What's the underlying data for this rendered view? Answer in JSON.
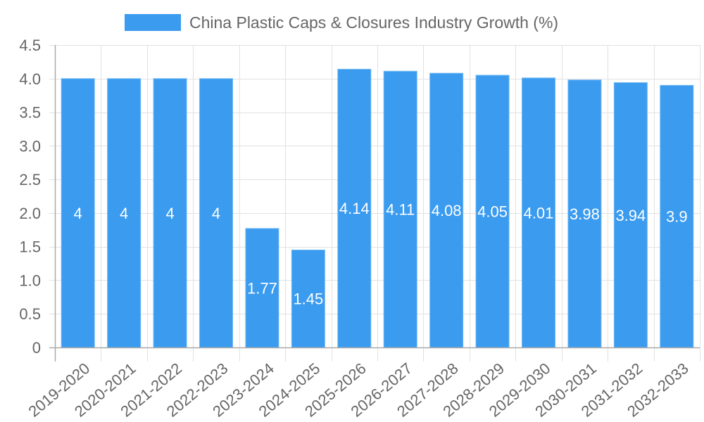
{
  "chart_data": {
    "type": "bar",
    "title": "",
    "legend": [
      {
        "label": "China Plastic Caps & Closures Industry Growth (%)",
        "color": "#3a9bef"
      }
    ],
    "legend_position": "top",
    "categories": [
      "2019-2020",
      "2020-2021",
      "2021-2022",
      "2022-2023",
      "2023-2024",
      "2024-2025",
      "2025-2026",
      "2026-2027",
      "2027-2028",
      "2028-2029",
      "2029-2030",
      "2030-2031",
      "2031-2032",
      "2032-2033"
    ],
    "series": [
      {
        "name": "China Plastic Caps & Closures Industry Growth (%)",
        "values": [
          4,
          4,
          4,
          4,
          1.77,
          1.45,
          4.14,
          4.11,
          4.08,
          4.05,
          4.01,
          3.98,
          3.94,
          3.9
        ],
        "color": "#3a9bef"
      }
    ],
    "data_labels": [
      "4",
      "4",
      "4",
      "4",
      "1.77",
      "1.45",
      "4.14",
      "4.11",
      "4.08",
      "4.05",
      "4.01",
      "3.98",
      "3.94",
      "3.9"
    ],
    "xlabel": "",
    "ylabel": "",
    "ylim": [
      0,
      4.5
    ],
    "yticks": [
      "0",
      "0.5",
      "1.0",
      "1.5",
      "2.0",
      "2.5",
      "3.0",
      "3.5",
      "4.0",
      "4.5"
    ],
    "grid": true
  }
}
